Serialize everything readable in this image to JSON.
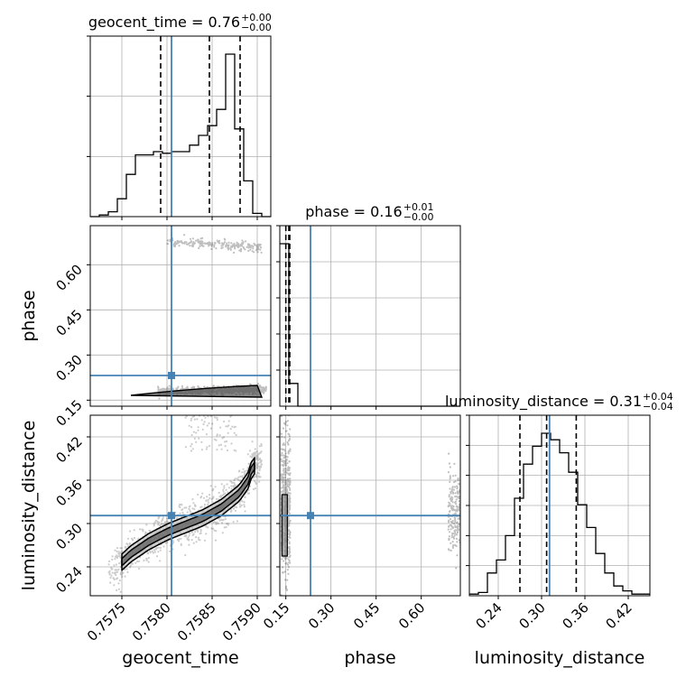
{
  "chart_data": [
    {
      "type": "histogram",
      "panel": "geocent_time",
      "title": {
        "param": "geocent_time",
        "value": "0.76",
        "plus": "+0.00",
        "minus": "−0.00"
      },
      "x_range": [
        0.75715,
        0.75915
      ],
      "bin_width": 0.0001,
      "counts": [
        0,
        1,
        3,
        11,
        26,
        38,
        38,
        40,
        39,
        40,
        40,
        44,
        50,
        56,
        66,
        100,
        54,
        22,
        2,
        0
      ],
      "quantiles": [
        0.75793,
        0.75847,
        0.75881
      ],
      "truth": 0.75805,
      "colors": {
        "hist": "#000000",
        "quantile": "#000000",
        "truth": "#4682b4"
      }
    },
    {
      "type": "histogram",
      "panel": "phase",
      "title": {
        "param": "phase",
        "value": "0.16",
        "plus": "+0.01",
        "minus": "−0.00"
      },
      "x_range": [
        0.13,
        0.73
      ],
      "bin_width": 0.03,
      "counts": [
        100,
        14,
        0,
        0,
        0,
        0,
        0,
        0,
        0,
        0,
        0,
        0,
        0,
        0,
        0,
        0,
        0,
        0,
        0,
        0
      ],
      "quantiles": [
        0.15,
        0.16,
        0.163
      ],
      "truth": 0.232,
      "colors": {
        "hist": "#000000",
        "quantile": "#000000",
        "truth": "#4682b4"
      }
    },
    {
      "type": "histogram",
      "panel": "luminosity_distance",
      "title": {
        "param": "luminosity_distance",
        "value": "0.31",
        "plus": "+0.04",
        "minus": "−0.04"
      },
      "x_range": [
        0.2,
        0.45
      ],
      "bin_width": 0.0125,
      "counts": [
        1,
        2,
        14,
        22,
        37,
        60,
        81,
        92,
        100,
        96,
        88,
        76,
        56,
        42,
        26,
        14,
        6,
        3,
        1,
        1
      ],
      "quantiles": [
        0.27,
        0.307,
        0.348
      ],
      "truth": 0.311,
      "colors": {
        "hist": "#000000",
        "quantile": "#000000",
        "truth": "#4682b4"
      }
    },
    {
      "type": "scatter",
      "panel": "geocent_time vs phase",
      "x_range": [
        0.75715,
        0.75915
      ],
      "y_range": [
        0.13,
        0.73
      ],
      "clusters": [
        {
          "x": [
            0.7579,
            0.7591
          ],
          "y": [
            0.165,
            0.2
          ]
        },
        {
          "x": [
            0.758,
            0.75905
          ],
          "y": [
            0.655,
            0.7
          ]
        }
      ],
      "truth": {
        "x": 0.75805,
        "y": 0.232
      }
    },
    {
      "type": "scatter",
      "panel": "geocent_time vs luminosity_distance",
      "x_range": [
        0.75715,
        0.75915
      ],
      "y_range": [
        0.2,
        0.45
      ],
      "ridge": [
        {
          "x": 0.7574,
          "y": 0.235
        },
        {
          "x": 0.7576,
          "y": 0.258
        },
        {
          "x": 0.7578,
          "y": 0.275
        },
        {
          "x": 0.758,
          "y": 0.288
        },
        {
          "x": 0.7582,
          "y": 0.298
        },
        {
          "x": 0.7584,
          "y": 0.308
        },
        {
          "x": 0.7586,
          "y": 0.322
        },
        {
          "x": 0.7588,
          "y": 0.342
        },
        {
          "x": 0.7589,
          "y": 0.36
        },
        {
          "x": 0.75895,
          "y": 0.38
        }
      ],
      "truth": {
        "x": 0.75805,
        "y": 0.311
      }
    },
    {
      "type": "scatter",
      "panel": "phase vs luminosity_distance",
      "x_range": [
        0.13,
        0.73
      ],
      "y_range": [
        0.2,
        0.45
      ],
      "clusters": [
        {
          "x": [
            0.135,
            0.165
          ],
          "y": [
            0.23,
            0.43
          ]
        },
        {
          "x": [
            0.69,
            0.73
          ],
          "y": [
            0.26,
            0.37
          ]
        }
      ],
      "truth": {
        "x": 0.232,
        "y": 0.311
      }
    }
  ],
  "axes": {
    "geocent_time": {
      "label": "geocent_time",
      "ticks": [
        0.7575,
        0.758,
        0.7585,
        0.759
      ],
      "tick_labels": [
        "0.7575",
        "0.7580",
        "0.7585",
        "0.7590"
      ]
    },
    "phase": {
      "label": "phase",
      "ticks": [
        0.15,
        0.3,
        0.45,
        0.6
      ],
      "tick_labels": [
        "0.15",
        "0.30",
        "0.45",
        "0.60"
      ]
    },
    "luminosity_distance": {
      "label": "luminosity_distance",
      "ticks": [
        0.24,
        0.3,
        0.36,
        0.42
      ],
      "tick_labels": [
        "0.24",
        "0.30",
        "0.36",
        "0.42"
      ]
    }
  },
  "grid": true
}
